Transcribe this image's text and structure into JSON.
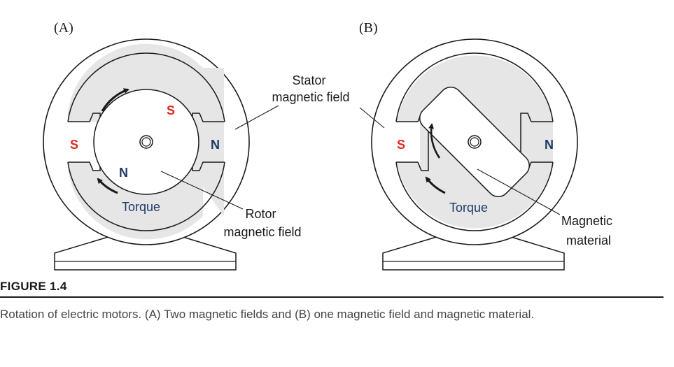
{
  "panels": {
    "a": {
      "label": "(A)",
      "stator_left_pole": "S",
      "stator_right_pole": "N",
      "rotor_top_pole": "S",
      "rotor_bottom_pole": "N",
      "torque_label": "Torque",
      "stator_callout": [
        "Stator",
        "magnetic field"
      ],
      "rotor_callout": [
        "Rotor",
        "magnetic field"
      ]
    },
    "b": {
      "label": "(B)",
      "stator_left_pole": "S",
      "stator_right_pole": "N",
      "torque_label": "Torque",
      "material_callout": [
        "Magnetic",
        "material"
      ]
    }
  },
  "colors": {
    "south_pole": "#e0281e",
    "north_pole": "#1f3a68",
    "stator_fill": "#e6e6e6",
    "outline": "#1a1a1a"
  },
  "caption": {
    "title": "FIGURE 1.4",
    "text": "Rotation of electric motors. (A) Two magnetic fields and (B) one magnetic field and magnetic material."
  }
}
